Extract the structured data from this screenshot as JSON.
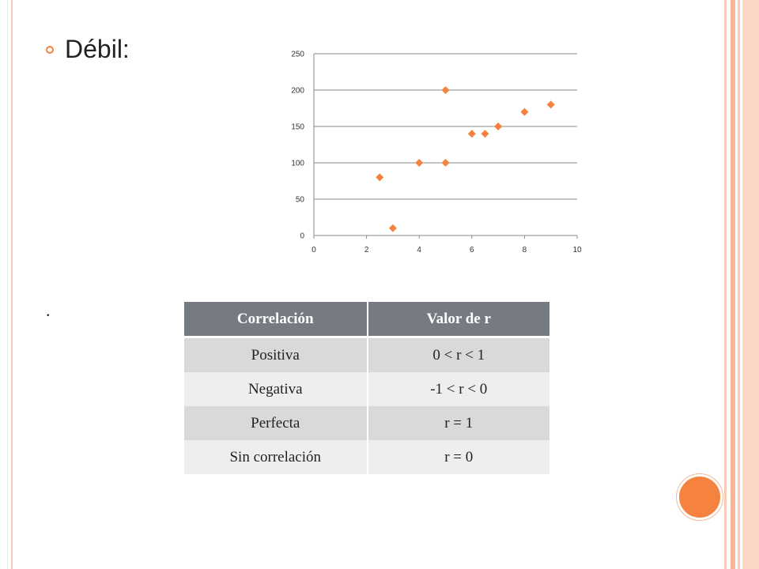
{
  "slide": {
    "bullet_text": "Débil:",
    "stray_text": "."
  },
  "colors": {
    "accent": "#f5823f",
    "table_header": "#767a83",
    "row_dark": "#d9d9d9",
    "row_light": "#eeeeee"
  },
  "chart_data": {
    "type": "scatter",
    "title": "",
    "xlabel": "",
    "ylabel": "",
    "xlim": [
      0,
      10
    ],
    "ylim": [
      0,
      250
    ],
    "x_ticks": [
      "0",
      "2",
      "4",
      "6",
      "8",
      "10"
    ],
    "y_ticks": [
      "0",
      "50",
      "100",
      "150",
      "200",
      "250"
    ],
    "grid": "horizontal",
    "marker": "diamond",
    "color": "#f5823f",
    "series": [
      {
        "points": [
          {
            "x": 2.5,
            "y": 80
          },
          {
            "x": 3,
            "y": 10
          },
          {
            "x": 4,
            "y": 100
          },
          {
            "x": 5,
            "y": 200
          },
          {
            "x": 5,
            "y": 100
          },
          {
            "x": 6,
            "y": 140
          },
          {
            "x": 6.5,
            "y": 140
          },
          {
            "x": 7,
            "y": 150
          },
          {
            "x": 8,
            "y": 170
          },
          {
            "x": 9,
            "y": 180
          }
        ]
      }
    ]
  },
  "table": {
    "headers": [
      "Correlación",
      "Valor de r"
    ],
    "rows": [
      [
        "Positiva",
        "0 < r < 1"
      ],
      [
        "Negativa",
        "-1 < r < 0"
      ],
      [
        "Perfecta",
        "r = 1"
      ],
      [
        "Sin correlación",
        "r  = 0"
      ]
    ]
  }
}
